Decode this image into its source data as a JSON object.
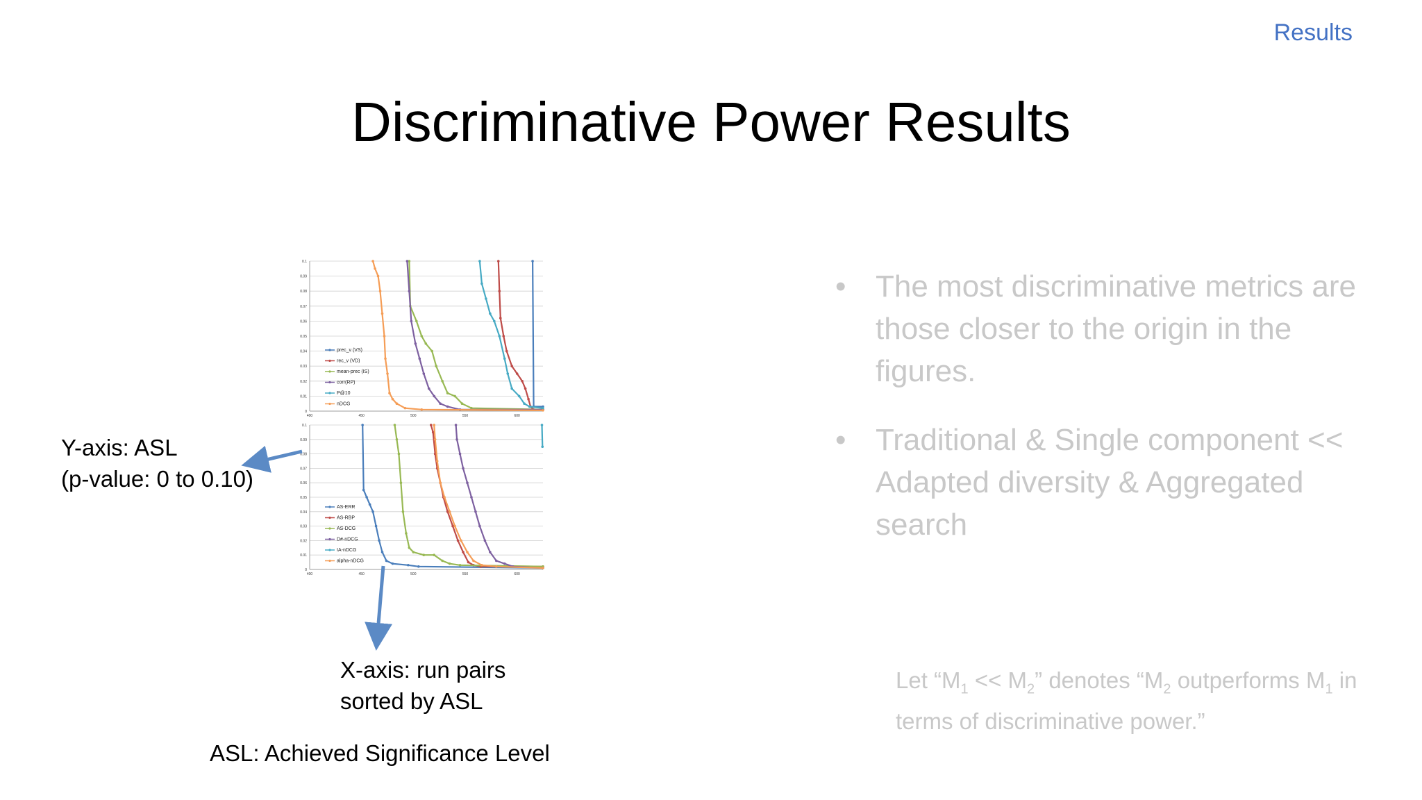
{
  "slide": {
    "section": "Results",
    "title": "Discriminative Power Results",
    "y_annotation": [
      "Y-axis: ASL",
      "(p-value: 0 to 0.10)"
    ],
    "x_annotation": [
      "X-axis: run pairs",
      "sorted by ASL"
    ],
    "footnote": "ASL: Achieved Significance Level",
    "bullets": [
      "The most discriminative metrics are those closer to the origin in the figures.",
      "Traditional & Single component << Adapted diversity & Aggregated search"
    ],
    "bullet_symbol": "•",
    "note": {
      "p1": "Let “M",
      "s1": "1",
      "p2": " << M",
      "s2": "2",
      "p3": "” denotes “M",
      "s3": "2",
      "p4": " outperforms M",
      "s4": "1",
      "p5": " in terms of discriminative power.”"
    }
  },
  "colors": {
    "section": "#4472c4",
    "bullet_text": "#c8c8c8",
    "arrow": "#5b8ac5",
    "series": [
      "#4a7ebb",
      "#be4b48",
      "#98b954",
      "#7d60a0",
      "#46aac4",
      "#f59d56"
    ]
  },
  "chart_data": [
    {
      "type": "line",
      "xlim": [
        400,
        625
      ],
      "ylim": [
        0,
        0.1
      ],
      "x_ticks": [
        "400",
        "450",
        "500",
        "550",
        "600"
      ],
      "y_ticks": [
        "0",
        "0.01",
        "0.02",
        "0.03",
        "0.04",
        "0.05",
        "0.06",
        "0.07",
        "0.08",
        "0.09",
        "0.1"
      ],
      "grid": true,
      "legend_position": "left",
      "series": [
        {
          "name": "prec_v (VS)",
          "color": "#4a7ebb",
          "points": [
            [
              615,
              0.1
            ],
            [
              616,
              0.003
            ],
            [
              625,
              0.003
            ]
          ]
        },
        {
          "name": "rec_v (VD)",
          "color": "#be4b48",
          "points": [
            [
              582,
              0.1
            ],
            [
              583,
              0.08
            ],
            [
              584,
              0.062
            ],
            [
              587,
              0.05
            ],
            [
              590,
              0.04
            ],
            [
              595,
              0.03
            ],
            [
              600,
              0.025
            ],
            [
              605,
              0.02
            ],
            [
              608,
              0.015
            ],
            [
              611,
              0.008
            ],
            [
              613,
              0.003
            ],
            [
              616,
              0.001
            ],
            [
              625,
              0.001
            ]
          ]
        },
        {
          "name": "mean-prec (IS)",
          "color": "#98b954",
          "points": [
            [
              496,
              0.1
            ],
            [
              497,
              0.07
            ],
            [
              503,
              0.06
            ],
            [
              508,
              0.05
            ],
            [
              512,
              0.045
            ],
            [
              518,
              0.04
            ],
            [
              522,
              0.03
            ],
            [
              528,
              0.02
            ],
            [
              533,
              0.012
            ],
            [
              540,
              0.01
            ],
            [
              547,
              0.005
            ],
            [
              556,
              0.002
            ],
            [
              625,
              0.001
            ]
          ]
        },
        {
          "name": "corr(RP)",
          "color": "#7d60a0",
          "points": [
            [
              494,
              0.1
            ],
            [
              496,
              0.08
            ],
            [
              498,
              0.06
            ],
            [
              502,
              0.045
            ],
            [
              506,
              0.035
            ],
            [
              510,
              0.025
            ],
            [
              515,
              0.015
            ],
            [
              520,
              0.01
            ],
            [
              526,
              0.005
            ],
            [
              533,
              0.003
            ],
            [
              545,
              0.001
            ],
            [
              625,
              0.001
            ]
          ]
        },
        {
          "name": "P@10",
          "color": "#46aac4",
          "points": [
            [
              564,
              0.1
            ],
            [
              566,
              0.085
            ],
            [
              570,
              0.075
            ],
            [
              574,
              0.065
            ],
            [
              578,
              0.06
            ],
            [
              583,
              0.05
            ],
            [
              588,
              0.035
            ],
            [
              591,
              0.025
            ],
            [
              595,
              0.015
            ],
            [
              602,
              0.01
            ],
            [
              607,
              0.005
            ],
            [
              612,
              0.003
            ],
            [
              625,
              0.002
            ]
          ]
        },
        {
          "name": "nDCG",
          "color": "#f59d56",
          "points": [
            [
              461,
              0.1
            ],
            [
              463,
              0.095
            ],
            [
              466,
              0.09
            ],
            [
              468,
              0.08
            ],
            [
              470,
              0.065
            ],
            [
              472,
              0.05
            ],
            [
              473,
              0.035
            ],
            [
              475,
              0.025
            ],
            [
              477,
              0.012
            ],
            [
              480,
              0.008
            ],
            [
              484,
              0.005
            ],
            [
              492,
              0.002
            ],
            [
              508,
              0.001
            ],
            [
              625,
              0.0005
            ]
          ]
        }
      ]
    },
    {
      "type": "line",
      "xlim": [
        400,
        625
      ],
      "ylim": [
        0,
        0.1
      ],
      "x_ticks": [
        "400",
        "450",
        "500",
        "550",
        "600"
      ],
      "y_ticks": [
        "0",
        "0.01",
        "0.02",
        "0.03",
        "0.04",
        "0.05",
        "0.06",
        "0.07",
        "0.08",
        "0.09",
        "0.1"
      ],
      "grid": true,
      "legend_position": "left",
      "series": [
        {
          "name": "AS-ERR",
          "color": "#4a7ebb",
          "points": [
            [
              451,
              0.1
            ],
            [
              452,
              0.055
            ],
            [
              455,
              0.05
            ],
            [
              458,
              0.045
            ],
            [
              461,
              0.04
            ],
            [
              464,
              0.03
            ],
            [
              467,
              0.02
            ],
            [
              470,
              0.012
            ],
            [
              474,
              0.006
            ],
            [
              480,
              0.004
            ],
            [
              495,
              0.003
            ],
            [
              505,
              0.002
            ],
            [
              625,
              0.001
            ]
          ]
        },
        {
          "name": "AS-RBP",
          "color": "#be4b48",
          "points": [
            [
              517,
              0.1
            ],
            [
              519,
              0.095
            ],
            [
              521,
              0.08
            ],
            [
              523,
              0.07
            ],
            [
              526,
              0.06
            ],
            [
              529,
              0.05
            ],
            [
              533,
              0.04
            ],
            [
              538,
              0.03
            ],
            [
              543,
              0.02
            ],
            [
              548,
              0.012
            ],
            [
              553,
              0.005
            ],
            [
              558,
              0.003
            ],
            [
              565,
              0.002
            ],
            [
              625,
              0.002
            ]
          ]
        },
        {
          "name": "AS-DCG",
          "color": "#98b954",
          "points": [
            [
              482,
              0.1
            ],
            [
              484,
              0.09
            ],
            [
              486,
              0.08
            ],
            [
              488,
              0.06
            ],
            [
              490,
              0.04
            ],
            [
              493,
              0.025
            ],
            [
              496,
              0.015
            ],
            [
              500,
              0.012
            ],
            [
              510,
              0.01
            ],
            [
              520,
              0.01
            ],
            [
              528,
              0.006
            ],
            [
              535,
              0.004
            ],
            [
              545,
              0.003
            ],
            [
              625,
              0.002
            ]
          ]
        },
        {
          "name": "D#-nDCG",
          "color": "#7d60a0",
          "points": [
            [
              541,
              0.1
            ],
            [
              542,
              0.09
            ],
            [
              545,
              0.08
            ],
            [
              548,
              0.07
            ],
            [
              552,
              0.06
            ],
            [
              556,
              0.05
            ],
            [
              560,
              0.04
            ],
            [
              564,
              0.03
            ],
            [
              569,
              0.02
            ],
            [
              574,
              0.012
            ],
            [
              580,
              0.006
            ],
            [
              588,
              0.004
            ],
            [
              596,
              0.002
            ],
            [
              625,
              0.001
            ]
          ]
        },
        {
          "name": "IA-nDCG",
          "color": "#46aac4",
          "points": [
            [
              624,
              0.1
            ],
            [
              624.5,
              0.085
            ]
          ]
        },
        {
          "name": "alpha-nDCG",
          "color": "#f59d56",
          "points": [
            [
              520,
              0.1
            ],
            [
              521,
              0.09
            ],
            [
              523,
              0.075
            ],
            [
              526,
              0.06
            ],
            [
              530,
              0.05
            ],
            [
              535,
              0.04
            ],
            [
              540,
              0.03
            ],
            [
              546,
              0.02
            ],
            [
              552,
              0.012
            ],
            [
              558,
              0.006
            ],
            [
              566,
              0.003
            ],
            [
              580,
              0.002
            ],
            [
              625,
              0.001
            ]
          ]
        }
      ]
    }
  ]
}
